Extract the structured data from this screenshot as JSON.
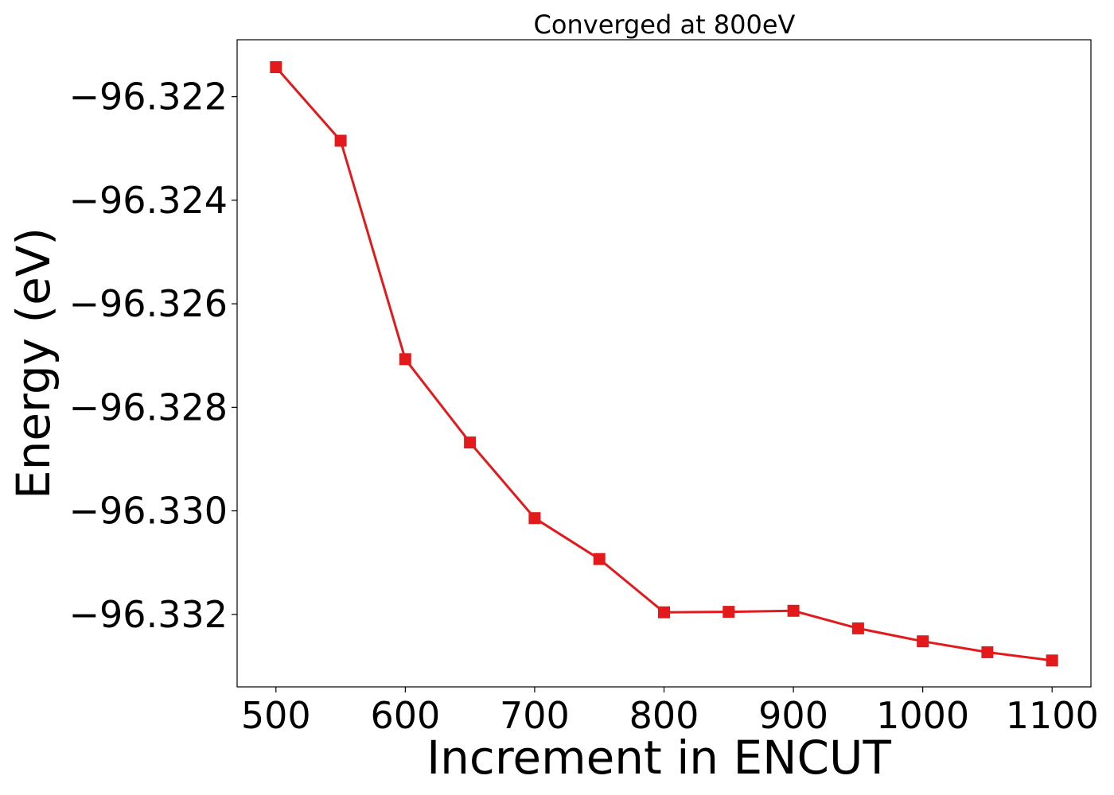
{
  "chart_data": {
    "type": "line",
    "title": "Converged at 800eV",
    "xlabel": "Increment in ENCUT",
    "ylabel": "Energy (eV)",
    "x": [
      500,
      550,
      600,
      650,
      700,
      750,
      800,
      850,
      900,
      950,
      1000,
      1050,
      1100
    ],
    "series": [
      {
        "values": [
          -96.32143,
          -96.32285,
          -96.32707,
          -96.32868,
          -96.33014,
          -96.33093,
          -96.33196,
          -96.33195,
          -96.33193,
          -96.33227,
          -96.33252,
          -96.33273,
          -96.33289
        ],
        "color": "#e31a1c",
        "marker": "square"
      }
    ],
    "xlim": [
      470,
      1130
    ],
    "ylim": [
      -96.3334,
      -96.3209
    ],
    "xticks": [
      500,
      600,
      700,
      800,
      900,
      1000,
      1100
    ],
    "xtick_labels": [
      "500",
      "600",
      "700",
      "800",
      "900",
      "1000",
      "1100"
    ],
    "yticks": [
      -96.322,
      -96.324,
      -96.326,
      -96.328,
      -96.33,
      -96.332
    ],
    "ytick_labels": [
      "−96.322",
      "−96.324",
      "−96.326",
      "−96.328",
      "−96.330",
      "−96.332"
    ],
    "grid": false,
    "legend": "none"
  }
}
